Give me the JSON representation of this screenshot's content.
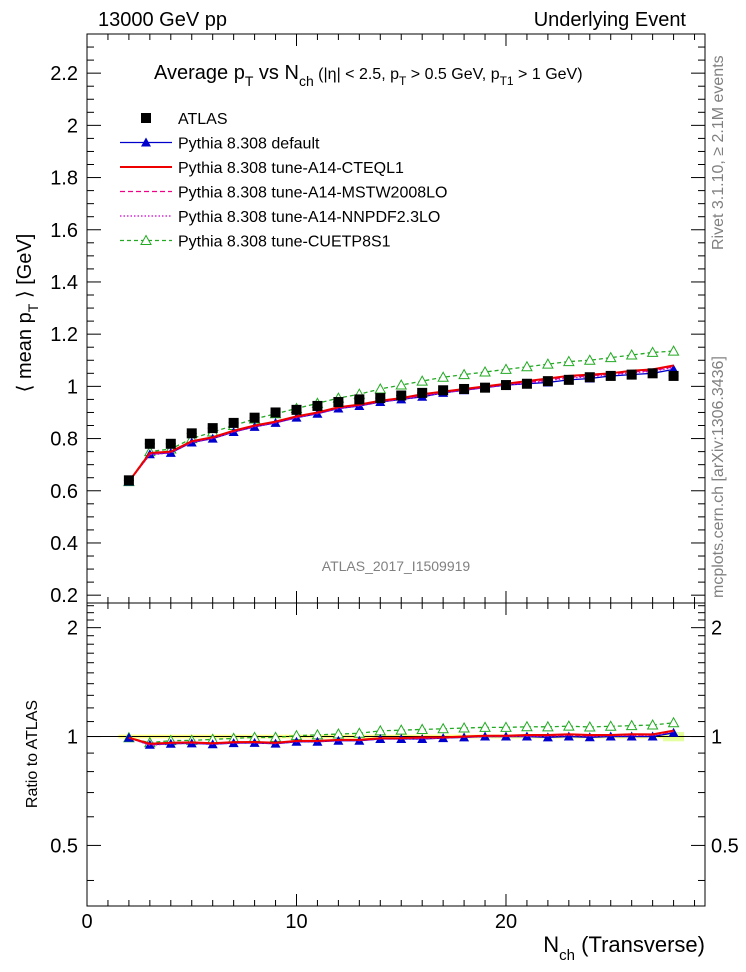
{
  "header": {
    "left": "13000 GeV pp",
    "right": "Underlying Event",
    "side_top": "Rivet 3.1.10, ≥ 2.1M events",
    "side_bottom": "mcplots.cern.ch [arXiv:1306.3436]"
  },
  "chart_data": {
    "type": "line",
    "title": "Average p_T vs N_ch (|η| < 2.5, p_T > 0.5 GeV, p_T1 > 1 GeV)",
    "title_parts": {
      "a": "Average p",
      "b": "T",
      "c": " vs N",
      "d": "ch",
      "e": " (|η| < 2.5, p",
      "f": "T",
      "g": " > 0.5 GeV, p",
      "h": "T1",
      "i": " > 1 GeV)"
    },
    "analysis_label": "ATLAS_2017_I1509919",
    "ylabel": "⟨ mean p_T ⟩ [GeV]",
    "ylabel_parts": {
      "a": "⟨ mean p",
      "b": "T",
      "c": " ⟩ [GeV]"
    },
    "ratio_ylabel": "Ratio to ATLAS",
    "xlabel": "N_ch (Transverse)",
    "xlabel_parts": {
      "a": "N",
      "b": "ch",
      "c": " (Transverse)"
    },
    "xlim": [
      0,
      29.5
    ],
    "ylim": [
      0.17,
      2.35
    ],
    "ratio_ylim": [
      0.34,
      2.34
    ],
    "x_ticks": [
      0,
      10,
      20
    ],
    "y_ticks": [
      0.2,
      0.4,
      0.6,
      0.8,
      1,
      1.2,
      1.4,
      1.6,
      1.8,
      2,
      2.2
    ],
    "ratio_ticks": [
      0.5,
      1,
      2
    ],
    "legend_position": "top-left",
    "x": [
      2,
      3,
      4,
      5,
      6,
      7,
      8,
      9,
      10,
      11,
      12,
      13,
      14,
      15,
      16,
      17,
      18,
      19,
      20,
      21,
      22,
      23,
      24,
      25,
      26,
      27,
      28
    ],
    "series": [
      {
        "name": "ATLAS",
        "style": "data",
        "color": "#000000",
        "values": [
          0.64,
          0.78,
          0.78,
          0.82,
          0.84,
          0.86,
          0.88,
          0.9,
          0.91,
          0.925,
          0.94,
          0.95,
          0.955,
          0.965,
          0.975,
          0.985,
          0.99,
          0.995,
          1.005,
          1.01,
          1.02,
          1.025,
          1.035,
          1.04,
          1.045,
          1.05,
          1.04
        ]
      },
      {
        "name": "Pythia 8.308 default",
        "style": "triangle",
        "color": "#0000cc",
        "values": [
          0.635,
          0.74,
          0.745,
          0.785,
          0.8,
          0.825,
          0.845,
          0.86,
          0.88,
          0.895,
          0.915,
          0.925,
          0.94,
          0.95,
          0.96,
          0.975,
          0.985,
          0.995,
          1.005,
          1.01,
          1.015,
          1.025,
          1.03,
          1.04,
          1.045,
          1.05,
          1.065
        ]
      },
      {
        "name": "Pythia 8.308 tune-A14-CTEQL1",
        "style": "solid",
        "color": "#ee0000",
        "values": [
          0.635,
          0.745,
          0.75,
          0.79,
          0.805,
          0.83,
          0.85,
          0.865,
          0.885,
          0.9,
          0.92,
          0.93,
          0.945,
          0.955,
          0.97,
          0.98,
          0.99,
          1.0,
          1.01,
          1.02,
          1.03,
          1.04,
          1.045,
          1.05,
          1.06,
          1.065,
          1.08
        ]
      },
      {
        "name": "Pythia 8.308 tune-A14-MSTW2008LO",
        "style": "dashed",
        "color": "#ee0088",
        "values": [
          0.635,
          0.74,
          0.748,
          0.787,
          0.802,
          0.827,
          0.847,
          0.862,
          0.882,
          0.897,
          0.917,
          0.927,
          0.942,
          0.952,
          0.965,
          0.977,
          0.987,
          0.997,
          1.007,
          1.015,
          1.025,
          1.035,
          1.04,
          1.047,
          1.055,
          1.06,
          1.075
        ]
      },
      {
        "name": "Pythia 8.308 tune-A14-NNPDF2.3LO",
        "style": "dotted",
        "color": "#cc00cc",
        "values": [
          0.635,
          0.738,
          0.745,
          0.785,
          0.8,
          0.825,
          0.845,
          0.86,
          0.88,
          0.895,
          0.915,
          0.925,
          0.94,
          0.95,
          0.962,
          0.975,
          0.985,
          0.995,
          1.005,
          1.012,
          1.022,
          1.032,
          1.037,
          1.045,
          1.052,
          1.058,
          1.072
        ]
      },
      {
        "name": "Pythia 8.308 tune-CUETP8S1",
        "style": "open-triangle",
        "color": "#22aa22",
        "values": [
          0.635,
          0.75,
          0.76,
          0.8,
          0.825,
          0.85,
          0.875,
          0.895,
          0.915,
          0.935,
          0.955,
          0.97,
          0.99,
          1.005,
          1.02,
          1.035,
          1.045,
          1.055,
          1.065,
          1.075,
          1.085,
          1.095,
          1.1,
          1.11,
          1.12,
          1.13,
          1.135
        ]
      }
    ]
  }
}
